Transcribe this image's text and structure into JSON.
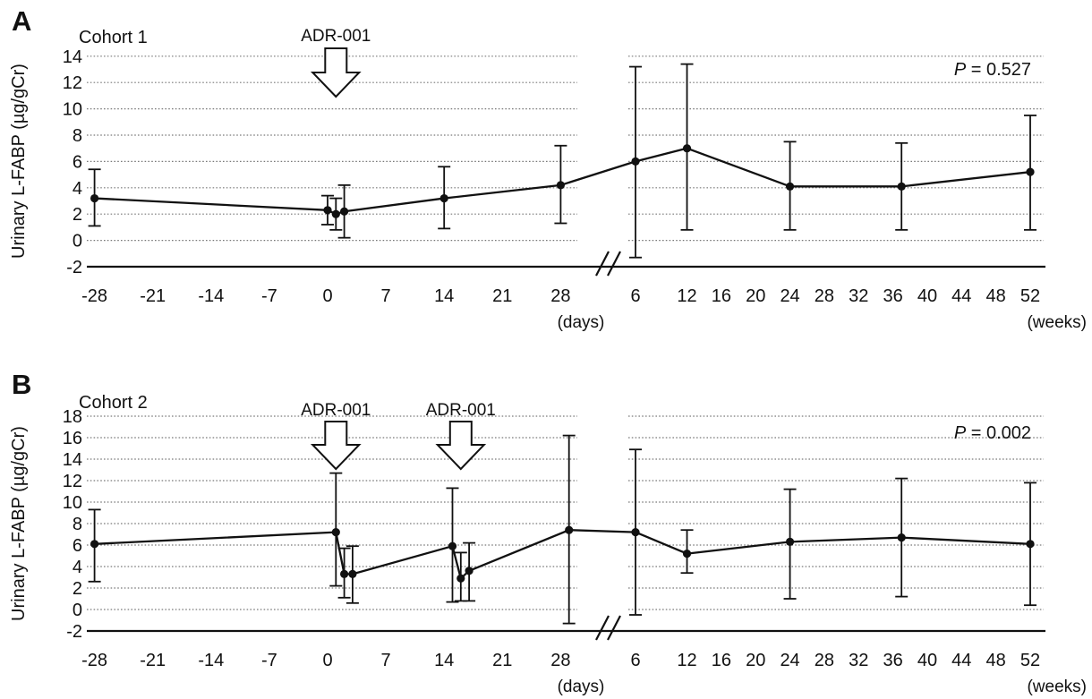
{
  "figure": {
    "panel_letters": [
      "A",
      "B"
    ]
  },
  "chart_data": [
    {
      "type": "line",
      "panel_label": "A",
      "title": "Cohort 1",
      "p_symbol": "P",
      "p_value": "0.527",
      "ylabel": "Urinary L-FABP (µg/gCr)",
      "ylim": [
        -2,
        14
      ],
      "ytick_step": 2,
      "grid": "horizontal-dotted",
      "legend_position": "none",
      "axis_break": true,
      "x_day_ticks": [
        -28,
        -21,
        -14,
        -7,
        0,
        7,
        14,
        21,
        28
      ],
      "x_week_ticks": [
        6,
        12,
        16,
        20,
        24,
        28,
        32,
        36,
        40,
        44,
        48,
        52
      ],
      "x_day_unit": "(days)",
      "x_week_unit": "(weeks)",
      "annotations": [
        {
          "label": "ADR-001",
          "day": 1
        }
      ],
      "points_days": [
        {
          "day": -28,
          "y": 3.2,
          "lo": 1.1,
          "hi": 5.4
        },
        {
          "day": 0,
          "y": 2.3,
          "lo": 1.2,
          "hi": 3.4
        },
        {
          "day": 1,
          "y": 2.0,
          "lo": 0.8,
          "hi": 3.2
        },
        {
          "day": 2,
          "y": 2.2,
          "lo": 0.2,
          "hi": 4.2
        },
        {
          "day": 14,
          "y": 3.2,
          "lo": 0.9,
          "hi": 5.6
        },
        {
          "day": 28,
          "y": 4.2,
          "lo": 1.3,
          "hi": 7.2
        }
      ],
      "points_weeks": [
        {
          "week": 6,
          "y": 6.0,
          "lo": -1.3,
          "hi": 13.2
        },
        {
          "week": 12,
          "y": 7.0,
          "lo": 0.8,
          "hi": 13.4
        },
        {
          "week": 24,
          "y": 4.1,
          "lo": 0.8,
          "hi": 7.5
        },
        {
          "week": 37,
          "y": 4.1,
          "lo": 0.8,
          "hi": 7.4
        },
        {
          "week": 52,
          "y": 5.2,
          "lo": 0.8,
          "hi": 9.5
        }
      ]
    },
    {
      "type": "line",
      "panel_label": "B",
      "title": "Cohort 2",
      "p_symbol": "P",
      "p_value": "0.002",
      "ylabel": "Urinary L-FABP (µg/gCr)",
      "ylim": [
        -2,
        18
      ],
      "ytick_step": 2,
      "grid": "horizontal-dotted",
      "legend_position": "none",
      "axis_break": true,
      "x_day_ticks": [
        -28,
        -21,
        -14,
        -7,
        0,
        7,
        14,
        21,
        28
      ],
      "x_week_ticks": [
        6,
        12,
        16,
        20,
        24,
        28,
        32,
        36,
        40,
        44,
        48,
        52
      ],
      "x_day_unit": "(days)",
      "x_week_unit": "(weeks)",
      "annotations": [
        {
          "label": "ADR-001",
          "day": 1
        },
        {
          "label": "ADR-001",
          "day": 16
        }
      ],
      "points_days": [
        {
          "day": -28,
          "y": 6.1,
          "lo": 2.6,
          "hi": 9.3
        },
        {
          "day": 1,
          "y": 7.2,
          "lo": 2.2,
          "hi": 12.7
        },
        {
          "day": 2,
          "y": 3.3,
          "lo": 1.1,
          "hi": 5.7
        },
        {
          "day": 3,
          "y": 3.3,
          "lo": 0.6,
          "hi": 5.9
        },
        {
          "day": 15,
          "y": 5.9,
          "lo": 0.7,
          "hi": 11.3
        },
        {
          "day": 16,
          "y": 2.9,
          "lo": 0.8,
          "hi": 5.3
        },
        {
          "day": 17,
          "y": 3.6,
          "lo": 0.8,
          "hi": 6.2
        },
        {
          "day": 29,
          "y": 7.4,
          "lo": -1.3,
          "hi": 16.2
        }
      ],
      "points_weeks": [
        {
          "week": 6,
          "y": 7.2,
          "lo": -0.5,
          "hi": 14.9
        },
        {
          "week": 12,
          "y": 5.2,
          "lo": 3.4,
          "hi": 7.4
        },
        {
          "week": 24,
          "y": 6.3,
          "lo": 1.0,
          "hi": 11.2
        },
        {
          "week": 37,
          "y": 6.7,
          "lo": 1.2,
          "hi": 12.2
        },
        {
          "week": 52,
          "y": 6.1,
          "lo": 0.4,
          "hi": 11.8
        }
      ]
    }
  ],
  "style": {
    "line_color": "#111111",
    "grid_color": "#7a7a7a",
    "arrow_fill": "#ffffff"
  }
}
